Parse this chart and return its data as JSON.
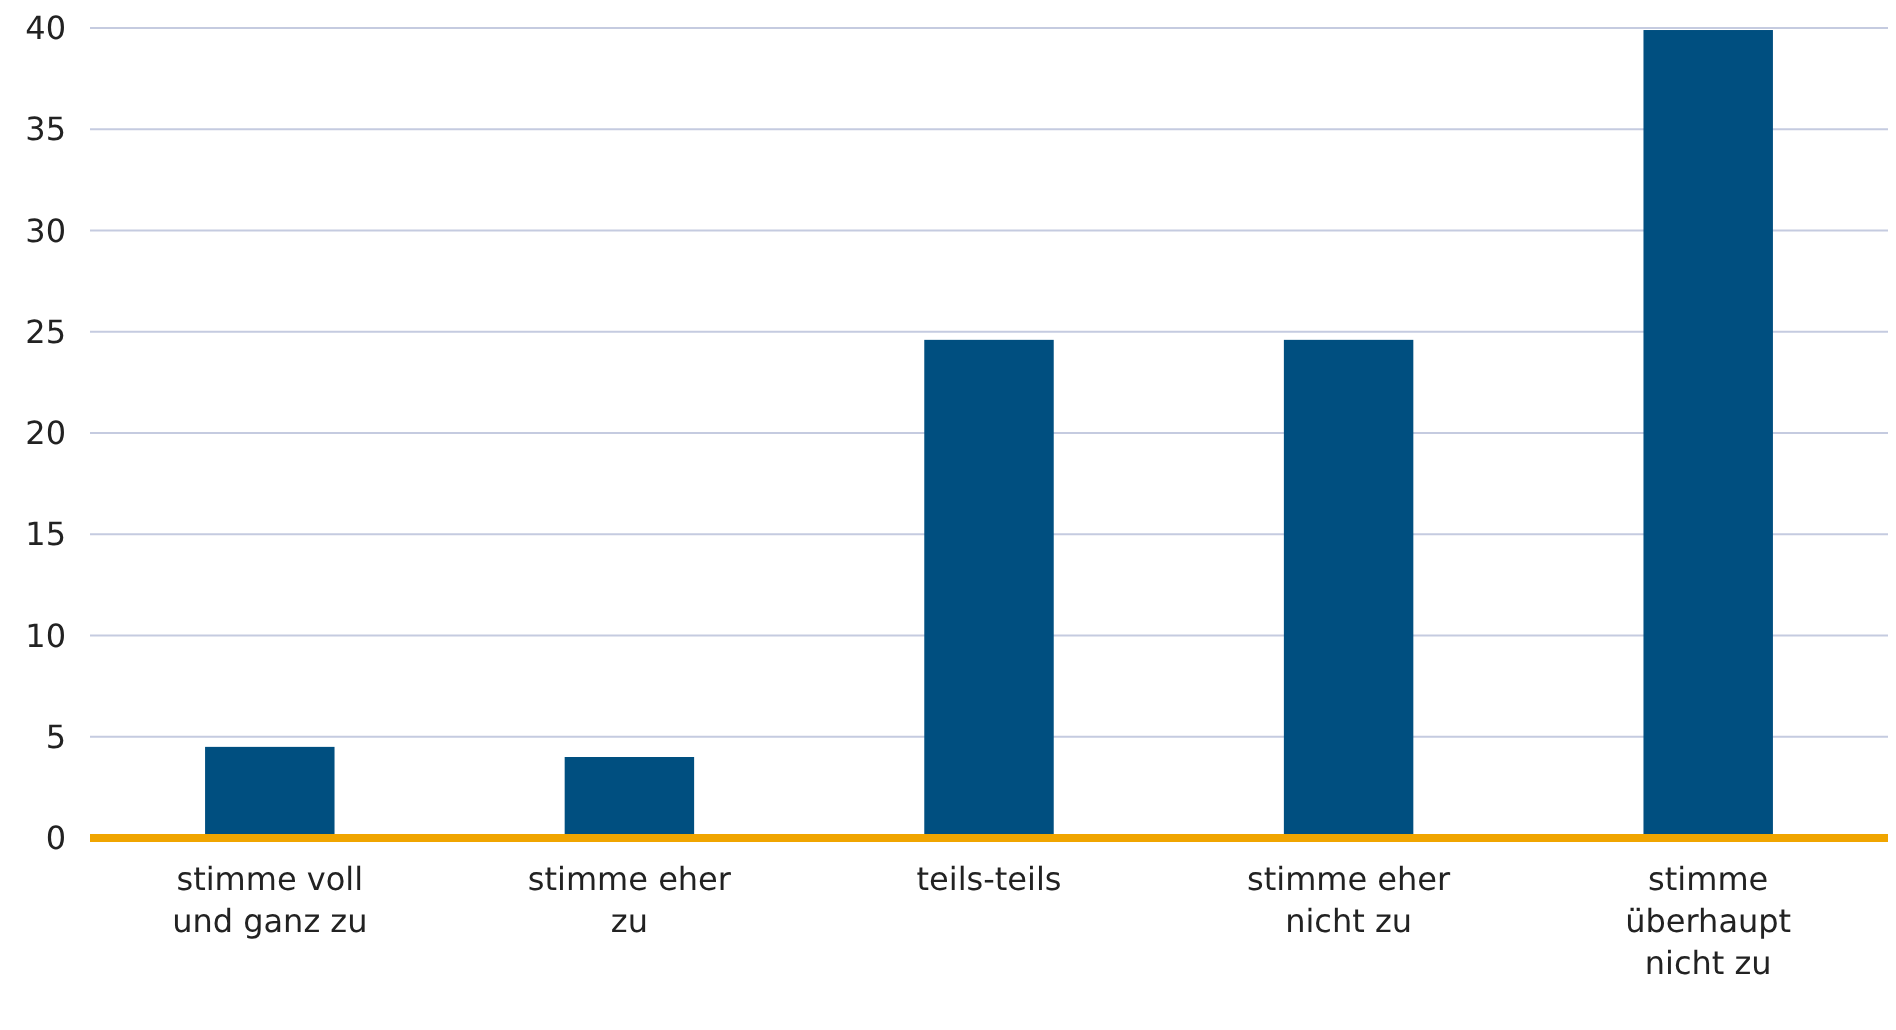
{
  "chart_data": {
    "type": "bar",
    "categories": [
      "stimme voll und ganz zu",
      "stimme eher zu",
      "teils-teils",
      "stimme eher nicht zu",
      "stimme überhaupt nicht zu"
    ],
    "values": [
      4.5,
      4.0,
      24.6,
      24.6,
      39.9
    ],
    "color": "#004f80",
    "ylim": [
      0,
      40
    ],
    "yticks": [
      0,
      5,
      10,
      15,
      20,
      25,
      30,
      35,
      40
    ],
    "grid": "y"
  }
}
